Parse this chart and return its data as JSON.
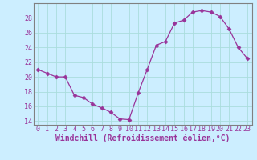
{
  "x": [
    0,
    1,
    2,
    3,
    4,
    5,
    6,
    7,
    8,
    9,
    10,
    11,
    12,
    13,
    14,
    15,
    16,
    17,
    18,
    19,
    20,
    21,
    22,
    23
  ],
  "y": [
    21.0,
    20.5,
    20.0,
    20.0,
    17.5,
    17.2,
    16.3,
    15.8,
    15.2,
    14.3,
    14.2,
    17.8,
    21.0,
    24.3,
    24.8,
    27.3,
    27.7,
    28.8,
    29.0,
    28.8,
    28.2,
    26.5,
    24.0,
    22.5
  ],
  "line_color": "#993399",
  "marker": "D",
  "marker_size": 2.5,
  "bg_color": "#cceeff",
  "grid_color": "#aadddd",
  "xlabel": "Windchill (Refroidissement éolien,°C)",
  "ylim": [
    13.5,
    30.0
  ],
  "xlim": [
    -0.5,
    23.5
  ],
  "yticks": [
    14,
    16,
    18,
    20,
    22,
    24,
    26,
    28
  ],
  "xticks": [
    0,
    1,
    2,
    3,
    4,
    5,
    6,
    7,
    8,
    9,
    10,
    11,
    12,
    13,
    14,
    15,
    16,
    17,
    18,
    19,
    20,
    21,
    22,
    23
  ],
  "tick_label_fontsize": 6.0,
  "xlabel_fontsize": 7.0,
  "spine_color": "#808080"
}
